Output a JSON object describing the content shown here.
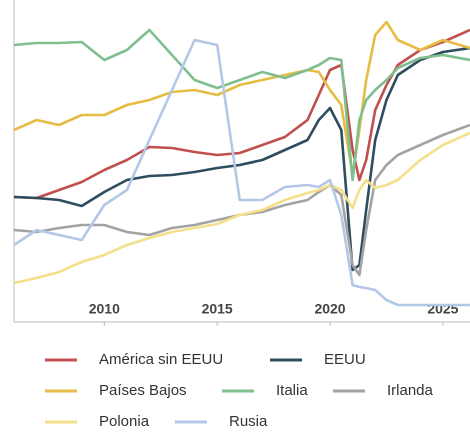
{
  "chart_data": {
    "type": "line",
    "x": [
      2006,
      2007,
      2008,
      2009,
      2010,
      2011,
      2012,
      2013,
      2014,
      2015,
      2016,
      2017,
      2018,
      2019,
      2019.5,
      2020,
      2020.5,
      2021,
      2021.3,
      2021.6,
      2022,
      2022.5,
      2023,
      2024,
      2025,
      2026.2
    ],
    "xlim": [
      2006,
      2026.2
    ],
    "xticks": [
      2010,
      2015,
      2020,
      2025
    ],
    "ylim": [
      0,
      322
    ],
    "series": [
      {
        "name": "América sin EEUU",
        "color": "#c0504d",
        "values": [
          125,
          124,
          132,
          140,
          152,
          162,
          175,
          174,
          170,
          167,
          169,
          177,
          185,
          202,
          227,
          252,
          257,
          172,
          142,
          162,
          212,
          237,
          257,
          272,
          280,
          292
        ]
      },
      {
        "name": "EEUU",
        "color": "#2e4d5e",
        "values": [
          125,
          124,
          122,
          116,
          130,
          142,
          146,
          147,
          150,
          154,
          157,
          162,
          172,
          182,
          202,
          214,
          192,
          52,
          57,
          112,
          182,
          222,
          247,
          262,
          270,
          274
        ]
      },
      {
        "name": "Países Bajos",
        "color": "#e6bc45",
        "values": [
          192,
          202,
          197,
          207,
          207,
          217,
          222,
          230,
          232,
          227,
          237,
          242,
          247,
          252,
          250,
          232,
          217,
          147,
          192,
          242,
          287,
          300,
          282,
          272,
          282,
          274
        ]
      },
      {
        "name": "Italia",
        "color": "#7fbf8f",
        "values": [
          277,
          279,
          279,
          280,
          262,
          272,
          292,
          267,
          242,
          234,
          242,
          250,
          244,
          252,
          257,
          264,
          262,
          142,
          202,
          222,
          232,
          242,
          254,
          264,
          267,
          262
        ]
      },
      {
        "name": "Irlanda",
        "color": "#a3a3a3",
        "values": [
          92,
          90,
          94,
          97,
          97,
          90,
          87,
          94,
          97,
          102,
          107,
          110,
          117,
          122,
          130,
          137,
          127,
          57,
          47,
          92,
          142,
          157,
          167,
          177,
          187,
          197
        ]
      },
      {
        "name": "Polonia",
        "color": "#f4df8a",
        "values": [
          39,
          44,
          50,
          60,
          67,
          77,
          84,
          90,
          94,
          98,
          107,
          112,
          122,
          129,
          132,
          137,
          132,
          114,
          132,
          142,
          134,
          137,
          142,
          162,
          177,
          189
        ]
      },
      {
        "name": "Rusia",
        "color": "#b4c7e7",
        "values": [
          77,
          92,
          87,
          82,
          117,
          132,
          182,
          232,
          282,
          277,
          122,
          122,
          135,
          137,
          135,
          142,
          107,
          37,
          35,
          34,
          32,
          22,
          17,
          17,
          17,
          17
        ]
      }
    ]
  }
}
